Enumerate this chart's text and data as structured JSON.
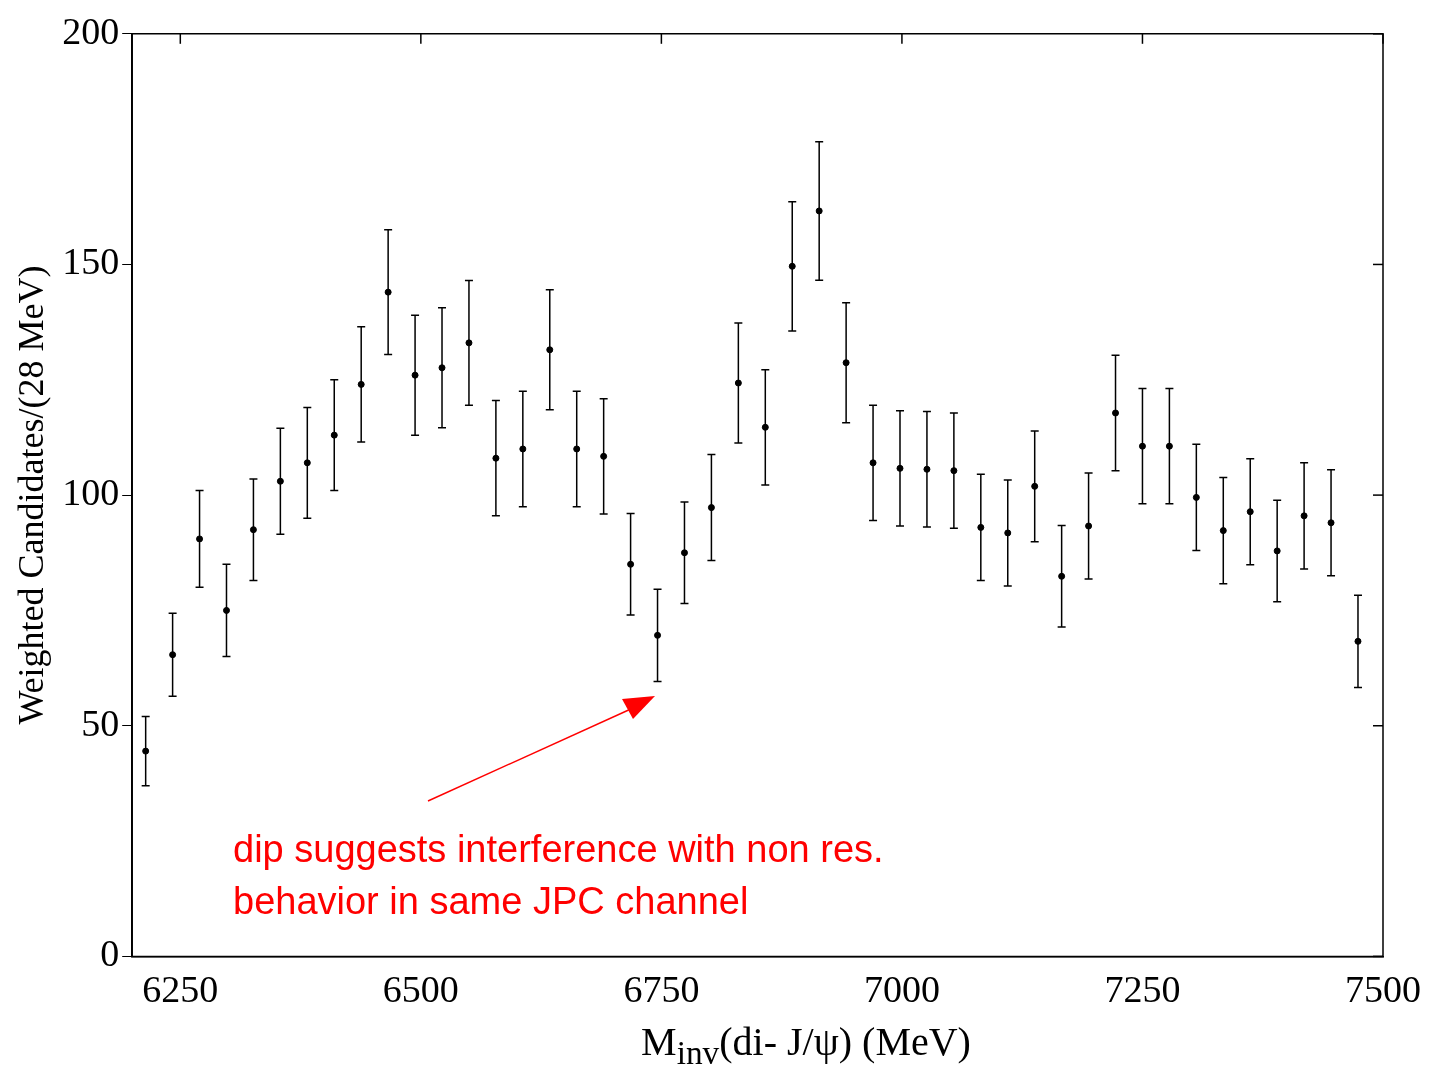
{
  "chart_data": {
    "type": "scatter",
    "xlabel": "M$_{inv}$(di- J/ψ)    (MeV)",
    "ylabel": "Weighted Candidates/(28 MeV)",
    "x": [
      6214,
      6242,
      6270,
      6298,
      6326,
      6354,
      6382,
      6410,
      6438,
      6466,
      6494,
      6522,
      6550,
      6578,
      6606,
      6634,
      6662,
      6690,
      6718,
      6746,
      6774,
      6802,
      6830,
      6858,
      6886,
      6914,
      6942,
      6970,
      6998,
      7026,
      7054,
      7082,
      7110,
      7138,
      7166,
      7194,
      7222,
      7250,
      7278,
      7306,
      7334,
      7362,
      7390,
      7418,
      7446,
      7474
    ],
    "values": [
      44.5,
      65.4,
      90.5,
      75,
      92.5,
      103,
      107,
      113,
      124,
      144,
      126,
      127.6,
      133,
      108,
      110,
      131.5,
      110,
      108.4,
      85,
      69.6,
      87.5,
      97.3,
      124.3,
      114.7,
      149.6,
      161.6,
      128.7,
      107,
      105.8,
      105.6,
      105.3,
      93,
      91.8,
      101.9,
      82.4,
      93.3,
      117.8,
      110.6,
      110.6,
      99.5,
      92.3,
      96.4,
      87.9,
      95.5,
      94,
      68.3
    ],
    "errors": [
      7.5,
      9,
      10.5,
      10,
      11,
      11.5,
      12,
      12,
      12.5,
      13.5,
      13,
      13,
      13.5,
      12.5,
      12.5,
      13,
      12.5,
      12.5,
      11,
      10,
      11,
      11.5,
      13,
      12.5,
      14,
      15,
      13,
      12.5,
      12.5,
      12.5,
      12.5,
      11.5,
      11.5,
      12,
      11,
      11.5,
      12.5,
      12.5,
      12.5,
      11.5,
      11.5,
      11.5,
      11,
      11.5,
      11.5,
      10
    ],
    "color": "#000000",
    "marker": "circle",
    "xlim": [
      6200,
      7500
    ],
    "xticks": [
      6250,
      6500,
      6750,
      7000,
      7250,
      7500
    ],
    "ylim": [
      0,
      200
    ],
    "yticks": [
      0,
      50,
      100,
      150,
      200
    ],
    "grid": false,
    "legend": false,
    "annotations": [
      "dip suggests interference with non res. behavior in same JPC channel"
    ]
  }
}
